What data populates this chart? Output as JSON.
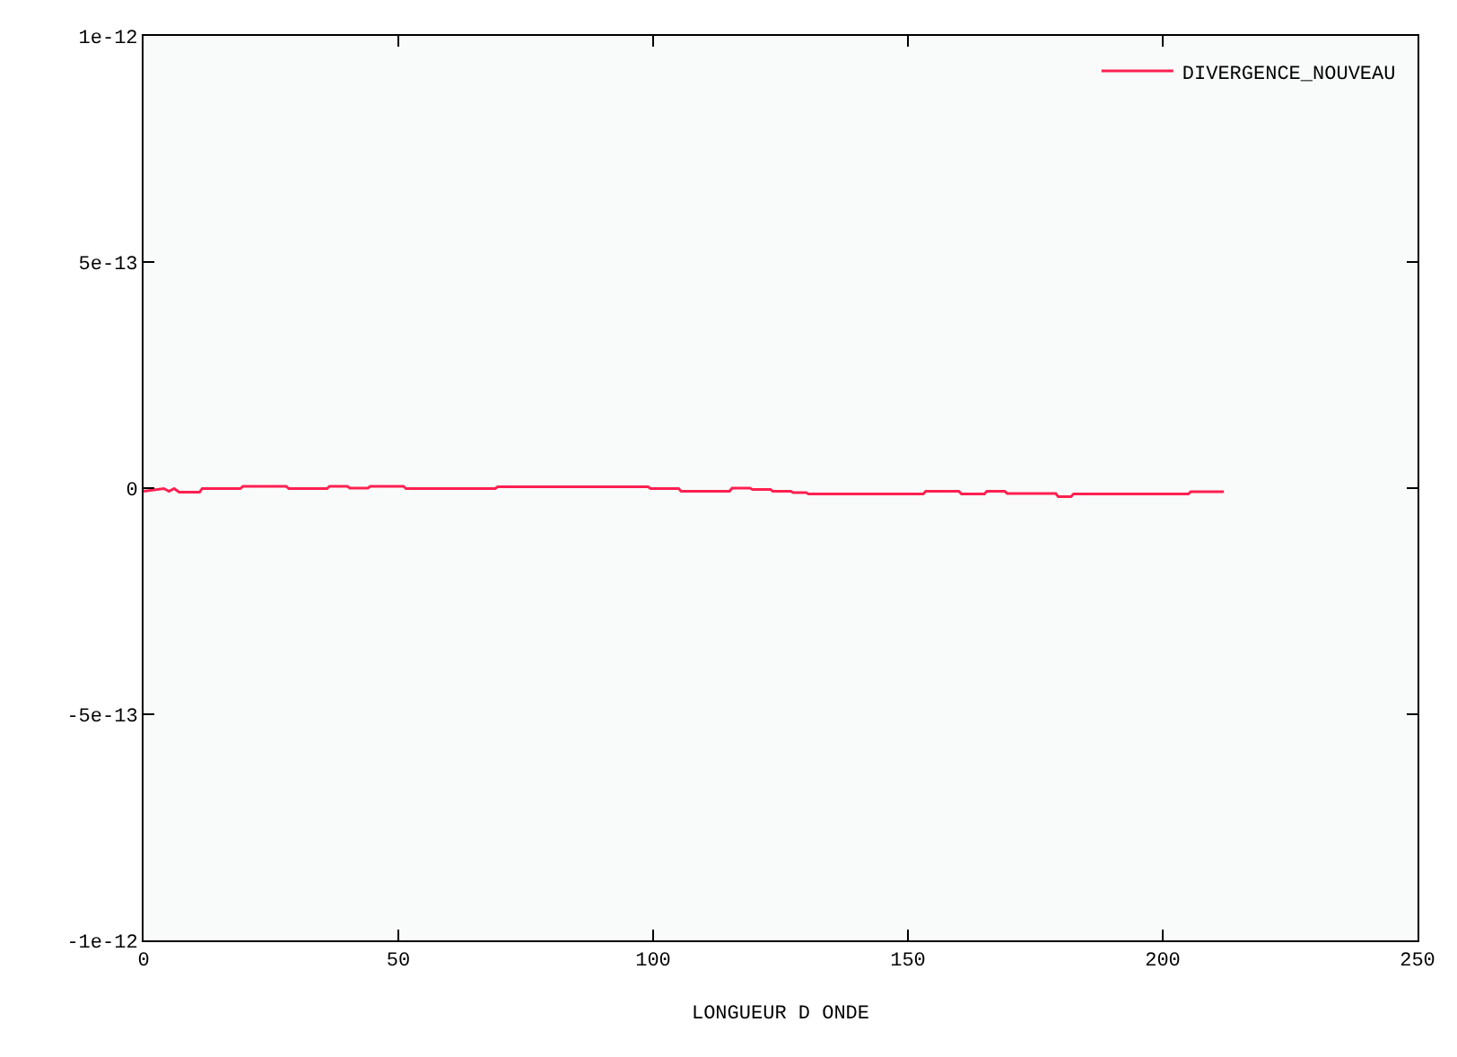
{
  "chart_data": {
    "type": "line",
    "xlabel": "LONGUEUR D ONDE",
    "xlim": [
      0,
      250
    ],
    "xticks": [
      0,
      50,
      100,
      150,
      200,
      250
    ],
    "ylim": [
      -1e-12,
      1e-12
    ],
    "yticks": [
      {
        "value": -1e-12,
        "label": "-1e-12"
      },
      {
        "value": -5e-13,
        "label": "-5e-13"
      },
      0,
      {
        "value": 5e-13,
        "label": "5e-13"
      },
      {
        "value": 1e-12,
        "label": "1e-12"
      }
    ],
    "grid": false,
    "legend": "top right",
    "marker": "none",
    "line_style": "solid",
    "series": [
      {
        "name": "DIVERGENCE_NOUVEAU",
        "color": "#ff2050",
        "x": [
          0,
          4,
          5,
          6,
          7,
          11,
          11.5,
          19,
          19.5,
          28,
          28.5,
          36,
          36.5,
          40,
          40.5,
          44,
          44.5,
          51,
          51.5,
          69,
          69.5,
          99,
          99.5,
          105,
          105.5,
          115,
          115.5,
          119,
          119.5,
          123,
          123.5,
          127,
          127.5,
          130,
          130.5,
          153,
          153.5,
          160,
          160.5,
          165,
          165.5,
          169,
          169.5,
          179,
          179.5,
          182,
          182.5,
          205,
          205.5,
          212
        ],
        "values": [
          -7e-15,
          -1e-15,
          -7e-15,
          -1e-15,
          -9e-15,
          -9e-15,
          -1e-15,
          -1e-15,
          4e-15,
          4e-15,
          -1e-15,
          -1e-15,
          4e-15,
          4e-15,
          0,
          0,
          4e-15,
          4e-15,
          -1e-15,
          -1e-15,
          3e-15,
          3e-15,
          -1e-15,
          -1e-15,
          -7e-15,
          -7e-15,
          0,
          0,
          -3e-15,
          -3e-15,
          -7e-15,
          -7e-15,
          -1e-14,
          -1e-14,
          -1.3e-14,
          -1.3e-14,
          -7e-15,
          -7e-15,
          -1.3e-14,
          -1.3e-14,
          -7e-15,
          -7e-15,
          -1.2e-14,
          -1.2e-14,
          -1.9e-14,
          -1.9e-14,
          -1.3e-14,
          -1.3e-14,
          -8e-15,
          -8e-15
        ]
      }
    ]
  }
}
